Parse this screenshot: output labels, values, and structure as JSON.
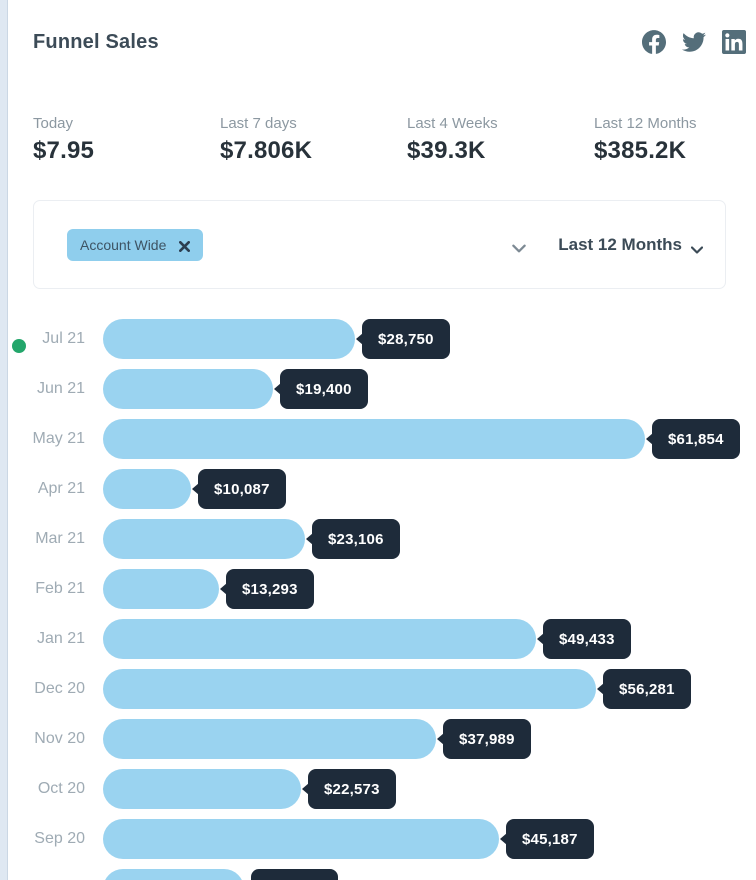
{
  "header": {
    "title": "Funnel Sales",
    "social_icons": [
      "facebook",
      "twitter",
      "linkedin"
    ]
  },
  "stats": [
    {
      "label": "Today",
      "value": "$7.95"
    },
    {
      "label": "Last 7 days",
      "value": "$7.806K"
    },
    {
      "label": "Last 4 Weeks",
      "value": "$39.3K"
    },
    {
      "label": "Last 12 Months",
      "value": "$385.2K"
    }
  ],
  "filter": {
    "chip": {
      "label": "Account Wide",
      "remove_icon": "x-icon"
    },
    "dropdown_icon": "chevron-down-icon",
    "period_selector": {
      "value": "Last 12 Months",
      "icon": "chevron-down-icon"
    }
  },
  "chart_data": {
    "type": "bar",
    "orientation": "horizontal",
    "categories": [
      "Jul 21",
      "Jun 21",
      "May 21",
      "Apr 21",
      "Mar 21",
      "Feb 21",
      "Jan 21",
      "Dec 20",
      "Nov 20",
      "Oct 20",
      "Sep 20"
    ],
    "values": [
      28750,
      19400,
      61854,
      10087,
      23106,
      13293,
      49433,
      56281,
      37989,
      22573,
      45187
    ],
    "labels": [
      "$28,750",
      "$19,400",
      "$61,854",
      "$10,087",
      "$23,106",
      "$13,293",
      "$49,433",
      "$56,281",
      "$37,989",
      "$22,573",
      "$45,187"
    ],
    "max_value": 61854,
    "grid": false,
    "legend": false,
    "partial_bottom_row": {
      "visible": true,
      "width_fraction": 0.26
    }
  },
  "status_indicator": {
    "shape": "green-dot",
    "color": "#23a66b"
  },
  "colors": {
    "bar_fill": "#9ad3f0",
    "tooltip_bg": "#1e2b3a",
    "chip_bg": "#8fceed",
    "icon_slate": "#546e7a",
    "page_bg": "#dfe8f2"
  }
}
